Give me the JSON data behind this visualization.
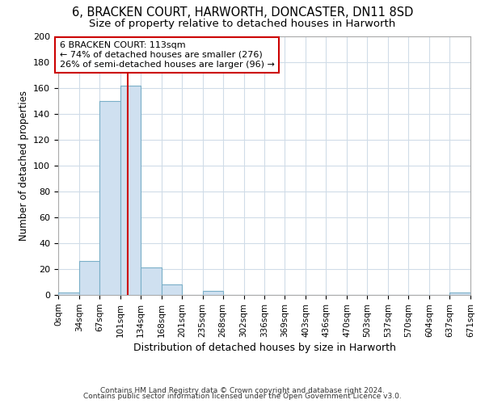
{
  "title1": "6, BRACKEN COURT, HARWORTH, DONCASTER, DN11 8SD",
  "title2": "Size of property relative to detached houses in Harworth",
  "xlabel": "Distribution of detached houses by size in Harworth",
  "ylabel": "Number of detached properties",
  "bin_edges": [
    0,
    34,
    67,
    101,
    134,
    168,
    201,
    235,
    268,
    302,
    336,
    369,
    403,
    436,
    470,
    503,
    537,
    570,
    604,
    637,
    671
  ],
  "bin_counts": [
    2,
    26,
    150,
    162,
    21,
    8,
    0,
    3,
    0,
    0,
    0,
    0,
    0,
    0,
    0,
    0,
    0,
    0,
    0,
    2
  ],
  "bar_facecolor": "#cfe0f0",
  "bar_edgecolor": "#7aafc8",
  "property_size": 113,
  "vline_color": "#cc0000",
  "annotation_text": "6 BRACKEN COURT: 113sqm\n← 74% of detached houses are smaller (276)\n26% of semi-detached houses are larger (96) →",
  "annotation_box_edgecolor": "#cc0000",
  "ylim": [
    0,
    200
  ],
  "yticks": [
    0,
    20,
    40,
    60,
    80,
    100,
    120,
    140,
    160,
    180,
    200
  ],
  "tick_labels": [
    "0sqm",
    "34sqm",
    "67sqm",
    "101sqm",
    "134sqm",
    "168sqm",
    "201sqm",
    "235sqm",
    "268sqm",
    "302sqm",
    "336sqm",
    "369sqm",
    "403sqm",
    "436sqm",
    "470sqm",
    "503sqm",
    "537sqm",
    "570sqm",
    "604sqm",
    "637sqm",
    "671sqm"
  ],
  "footnote1": "Contains HM Land Registry data © Crown copyright and database right 2024.",
  "footnote2": "Contains public sector information licensed under the Open Government Licence v3.0.",
  "title1_fontsize": 10.5,
  "title2_fontsize": 9.5,
  "tick_label_fontsize": 7.5,
  "xlabel_fontsize": 9,
  "ylabel_fontsize": 8.5,
  "footnote_fontsize": 6.5
}
